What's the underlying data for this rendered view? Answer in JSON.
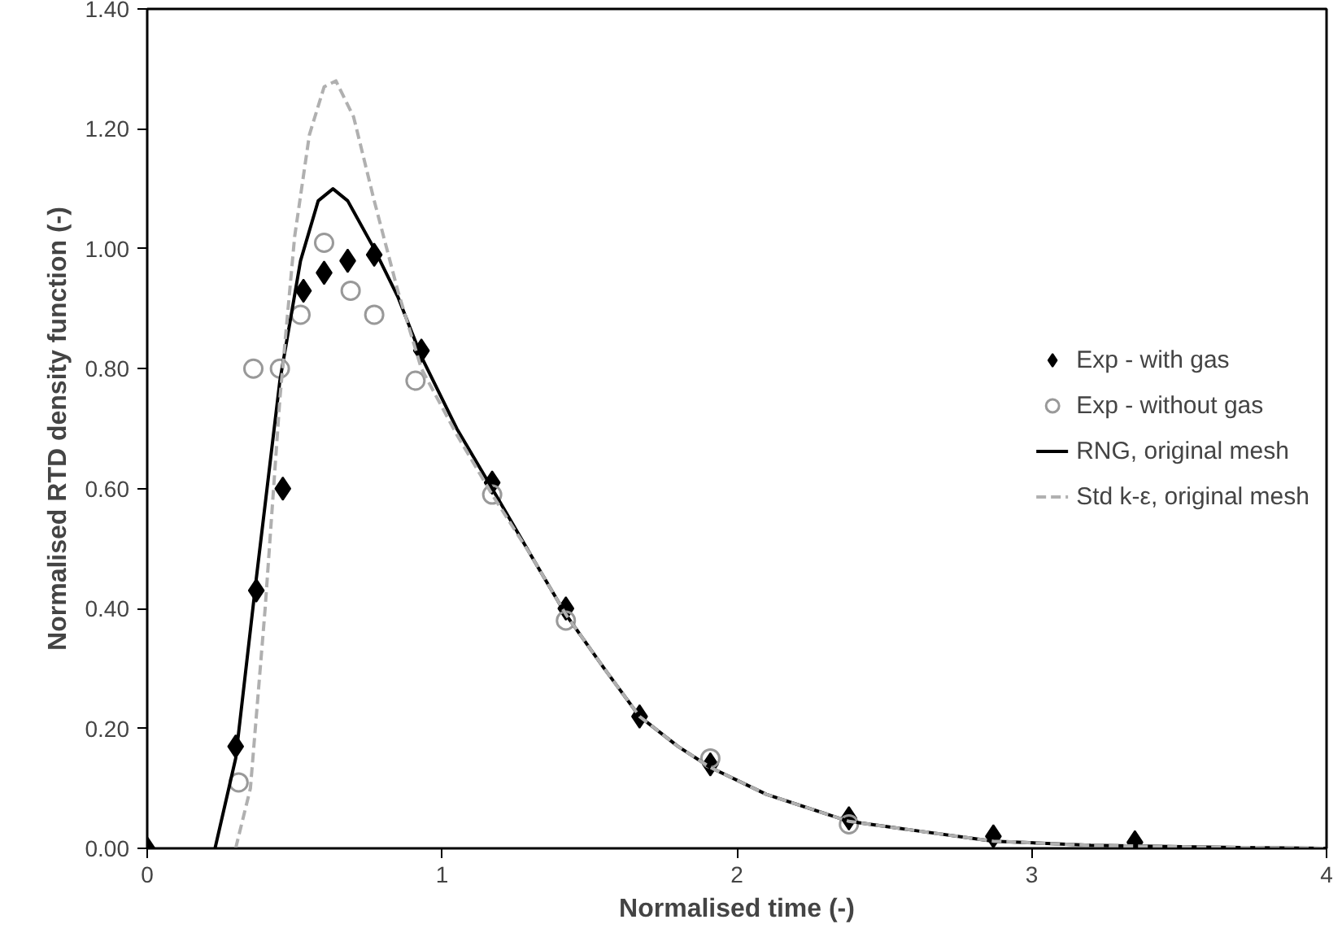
{
  "chart_data": {
    "type": "scatter",
    "xlabel": "Normalised time (-)",
    "ylabel": "Normalised RTD density function (-)",
    "xlim": [
      0,
      4
    ],
    "ylim": [
      0,
      1.4
    ],
    "xticks": [
      0,
      1,
      2,
      3,
      4
    ],
    "yticks": [
      {
        "value": 0,
        "label": "0.00"
      },
      {
        "value": 0.2,
        "label": "0.20"
      },
      {
        "value": 0.4,
        "label": "0.40"
      },
      {
        "value": 0.6,
        "label": "0.60"
      },
      {
        "value": 0.8,
        "label": "0.80"
      },
      {
        "value": 1.0,
        "label": "1.00"
      },
      {
        "value": 1.2,
        "label": "1.20"
      },
      {
        "value": 1.4,
        "label": "1.40"
      }
    ],
    "grid": false,
    "legend": "right",
    "series": [
      {
        "name": "Exp - with gas",
        "marker": "diamond",
        "color": "#000000",
        "x": [
          0,
          0.3,
          0.37,
          0.46,
          0.53,
          0.6,
          0.68,
          0.77,
          0.93,
          1.17,
          1.42,
          1.67,
          1.91,
          2.38,
          2.87,
          3.35
        ],
        "values": [
          0,
          0.17,
          0.43,
          0.6,
          0.93,
          0.96,
          0.98,
          0.99,
          0.83,
          0.61,
          0.4,
          0.22,
          0.14,
          0.05,
          0.02,
          0.01
        ]
      },
      {
        "name": "Exp - without gas",
        "marker": "circle",
        "color": "#999999",
        "x": [
          0.31,
          0.36,
          0.45,
          0.52,
          0.6,
          0.69,
          0.77,
          0.91,
          1.17,
          1.42,
          1.91,
          2.38
        ],
        "values": [
          0.11,
          0.8,
          0.8,
          0.89,
          1.01,
          0.93,
          0.89,
          0.78,
          0.59,
          0.38,
          0.15,
          0.04
        ]
      },
      {
        "name": "RNG, original mesh",
        "type": "line",
        "line_style": "solid",
        "color": "#000000",
        "x": [
          0.23,
          0.3,
          0.37,
          0.45,
          0.52,
          0.58,
          0.63,
          0.68,
          0.77,
          0.85,
          0.93,
          1.05,
          1.17,
          1.3,
          1.42,
          1.55,
          1.67,
          1.8,
          1.91,
          2.1,
          2.38,
          2.6,
          2.87,
          3.2,
          3.6,
          4.0
        ],
        "values": [
          0,
          0.15,
          0.45,
          0.78,
          0.98,
          1.08,
          1.1,
          1.08,
          1.0,
          0.92,
          0.82,
          0.7,
          0.6,
          0.49,
          0.39,
          0.3,
          0.22,
          0.17,
          0.135,
          0.09,
          0.045,
          0.03,
          0.012,
          0.005,
          0.002,
          0
        ]
      },
      {
        "name": "Std k-ε, original mesh",
        "type": "line",
        "line_style": "dashed",
        "color": "#b0b0b0",
        "x": [
          0.3,
          0.35,
          0.4,
          0.45,
          0.5,
          0.55,
          0.6,
          0.64,
          0.7,
          0.77,
          0.85,
          0.93,
          1.05,
          1.17,
          1.3,
          1.42,
          1.55,
          1.67,
          1.8,
          1.91,
          2.1,
          2.38,
          2.6,
          2.87,
          3.2,
          3.6,
          4.0
        ],
        "values": [
          0,
          0.1,
          0.4,
          0.75,
          1.02,
          1.19,
          1.27,
          1.28,
          1.22,
          1.08,
          0.93,
          0.8,
          0.69,
          0.59,
          0.49,
          0.39,
          0.3,
          0.22,
          0.17,
          0.135,
          0.09,
          0.045,
          0.03,
          0.012,
          0.005,
          0.002,
          0
        ]
      }
    ]
  }
}
